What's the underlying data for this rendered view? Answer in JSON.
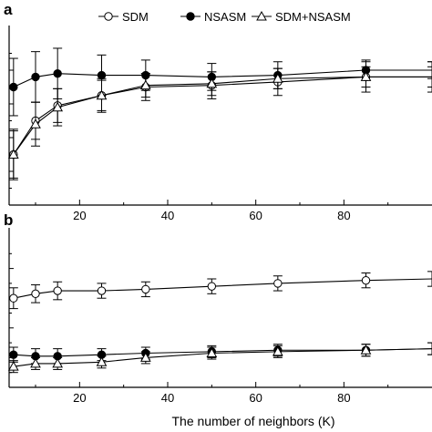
{
  "chart_data": [
    {
      "type": "line",
      "panel_label": "a",
      "x": [
        5,
        10,
        15,
        25,
        35,
        50,
        65,
        85,
        100
      ],
      "xlim": [
        4,
        100
      ],
      "xticks": [
        20,
        40,
        60,
        80
      ],
      "ylim": [
        0,
        10
      ],
      "grid": false,
      "legend_position": "top",
      "series": [
        {
          "name": "SDM",
          "marker": "open-circle",
          "values": [
            3.0,
            5.0,
            5.9,
            6.5,
            7.0,
            7.1,
            7.3,
            7.6,
            7.6
          ],
          "err": [
            1.5,
            1.1,
            1.0,
            1.0,
            0.8,
            0.8,
            0.8,
            0.9,
            0.9
          ]
        },
        {
          "name": "NSASM",
          "marker": "filled-circle",
          "values": [
            7.0,
            7.6,
            7.8,
            7.7,
            7.7,
            7.6,
            7.7,
            8.0,
            8.0
          ],
          "err": [
            1.7,
            1.5,
            1.5,
            1.2,
            0.9,
            0.8,
            0.8,
            0.6,
            0.5
          ]
        },
        {
          "name": "SDM+NSASM",
          "marker": "open-triangle",
          "values": [
            3.0,
            4.8,
            5.8,
            6.5,
            7.1,
            7.2,
            7.5,
            7.6,
            7.6
          ],
          "err": [
            1.4,
            1.3,
            1.1,
            0.9,
            0.7,
            0.7,
            0.6,
            0.6,
            0.6
          ]
        }
      ]
    },
    {
      "type": "line",
      "panel_label": "b",
      "x": [
        5,
        10,
        15,
        25,
        35,
        50,
        65,
        85,
        100
      ],
      "xlim": [
        4,
        100
      ],
      "xticks": [
        20,
        40,
        60,
        80
      ],
      "ylim": [
        0,
        10
      ],
      "xlabel": "The number of neighbors (K)",
      "grid": false,
      "series": [
        {
          "name": "SDM",
          "marker": "open-circle",
          "values": [
            6.0,
            6.3,
            6.5,
            6.5,
            6.6,
            6.8,
            7.0,
            7.2,
            7.3
          ],
          "err": [
            0.7,
            0.6,
            0.6,
            0.5,
            0.5,
            0.5,
            0.5,
            0.5,
            0.5
          ]
        },
        {
          "name": "NSASM",
          "marker": "filled-circle",
          "values": [
            2.2,
            2.1,
            2.1,
            2.2,
            2.3,
            2.4,
            2.5,
            2.5,
            2.6
          ],
          "err": [
            0.5,
            0.5,
            0.5,
            0.4,
            0.4,
            0.4,
            0.4,
            0.4,
            0.4
          ]
        },
        {
          "name": "SDM+NSASM",
          "marker": "open-triangle",
          "values": [
            1.4,
            1.6,
            1.6,
            1.7,
            2.0,
            2.3,
            2.4,
            2.5,
            2.6
          ],
          "err": [
            0.4,
            0.4,
            0.4,
            0.4,
            0.4,
            0.4,
            0.4,
            0.4,
            0.4
          ]
        }
      ]
    }
  ]
}
